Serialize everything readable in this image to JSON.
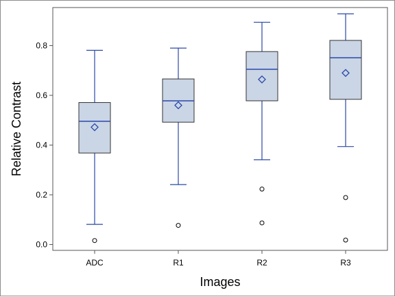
{
  "chart_data": {
    "type": "box",
    "title": "",
    "xlabel": "Images",
    "ylabel": "Relative Contrast",
    "ylim": [
      -0.03,
      0.95
    ],
    "yticks": [
      "0.0",
      "0.2",
      "0.4",
      "0.6",
      "0.8"
    ],
    "ytick_values": [
      0.0,
      0.2,
      0.4,
      0.6,
      0.8
    ],
    "grid": false,
    "legend": "none",
    "categories": [
      "ADC",
      "R1",
      "R2",
      "R3"
    ],
    "boxes": [
      {
        "category": "ADC",
        "whisker_low": 0.081,
        "q1": 0.368,
        "median": 0.496,
        "mean": 0.472,
        "q3": 0.571,
        "whisker_high": 0.781,
        "outliers": [
          0.016
        ]
      },
      {
        "category": "R1",
        "whisker_low": 0.241,
        "q1": 0.492,
        "median": 0.578,
        "mean": 0.56,
        "q3": 0.666,
        "whisker_high": 0.79,
        "outliers": [
          0.077
        ]
      },
      {
        "category": "R2",
        "whisker_low": 0.341,
        "q1": 0.578,
        "median": 0.705,
        "mean": 0.664,
        "q3": 0.776,
        "whisker_high": 0.894,
        "outliers": [
          0.223,
          0.087
        ]
      },
      {
        "category": "R3",
        "whisker_low": 0.394,
        "q1": 0.584,
        "median": 0.751,
        "mean": 0.69,
        "q3": 0.821,
        "whisker_high": 0.928,
        "outliers": [
          0.189,
          0.018
        ]
      }
    ],
    "colors": {
      "box_fill": "#cad5e6",
      "box_stroke": "#333333",
      "median_line": "#2a48a8",
      "whisker": "#2a48a8",
      "mean_marker": "#2a48a8",
      "outlier": "#000000",
      "axis": "#555555"
    }
  }
}
